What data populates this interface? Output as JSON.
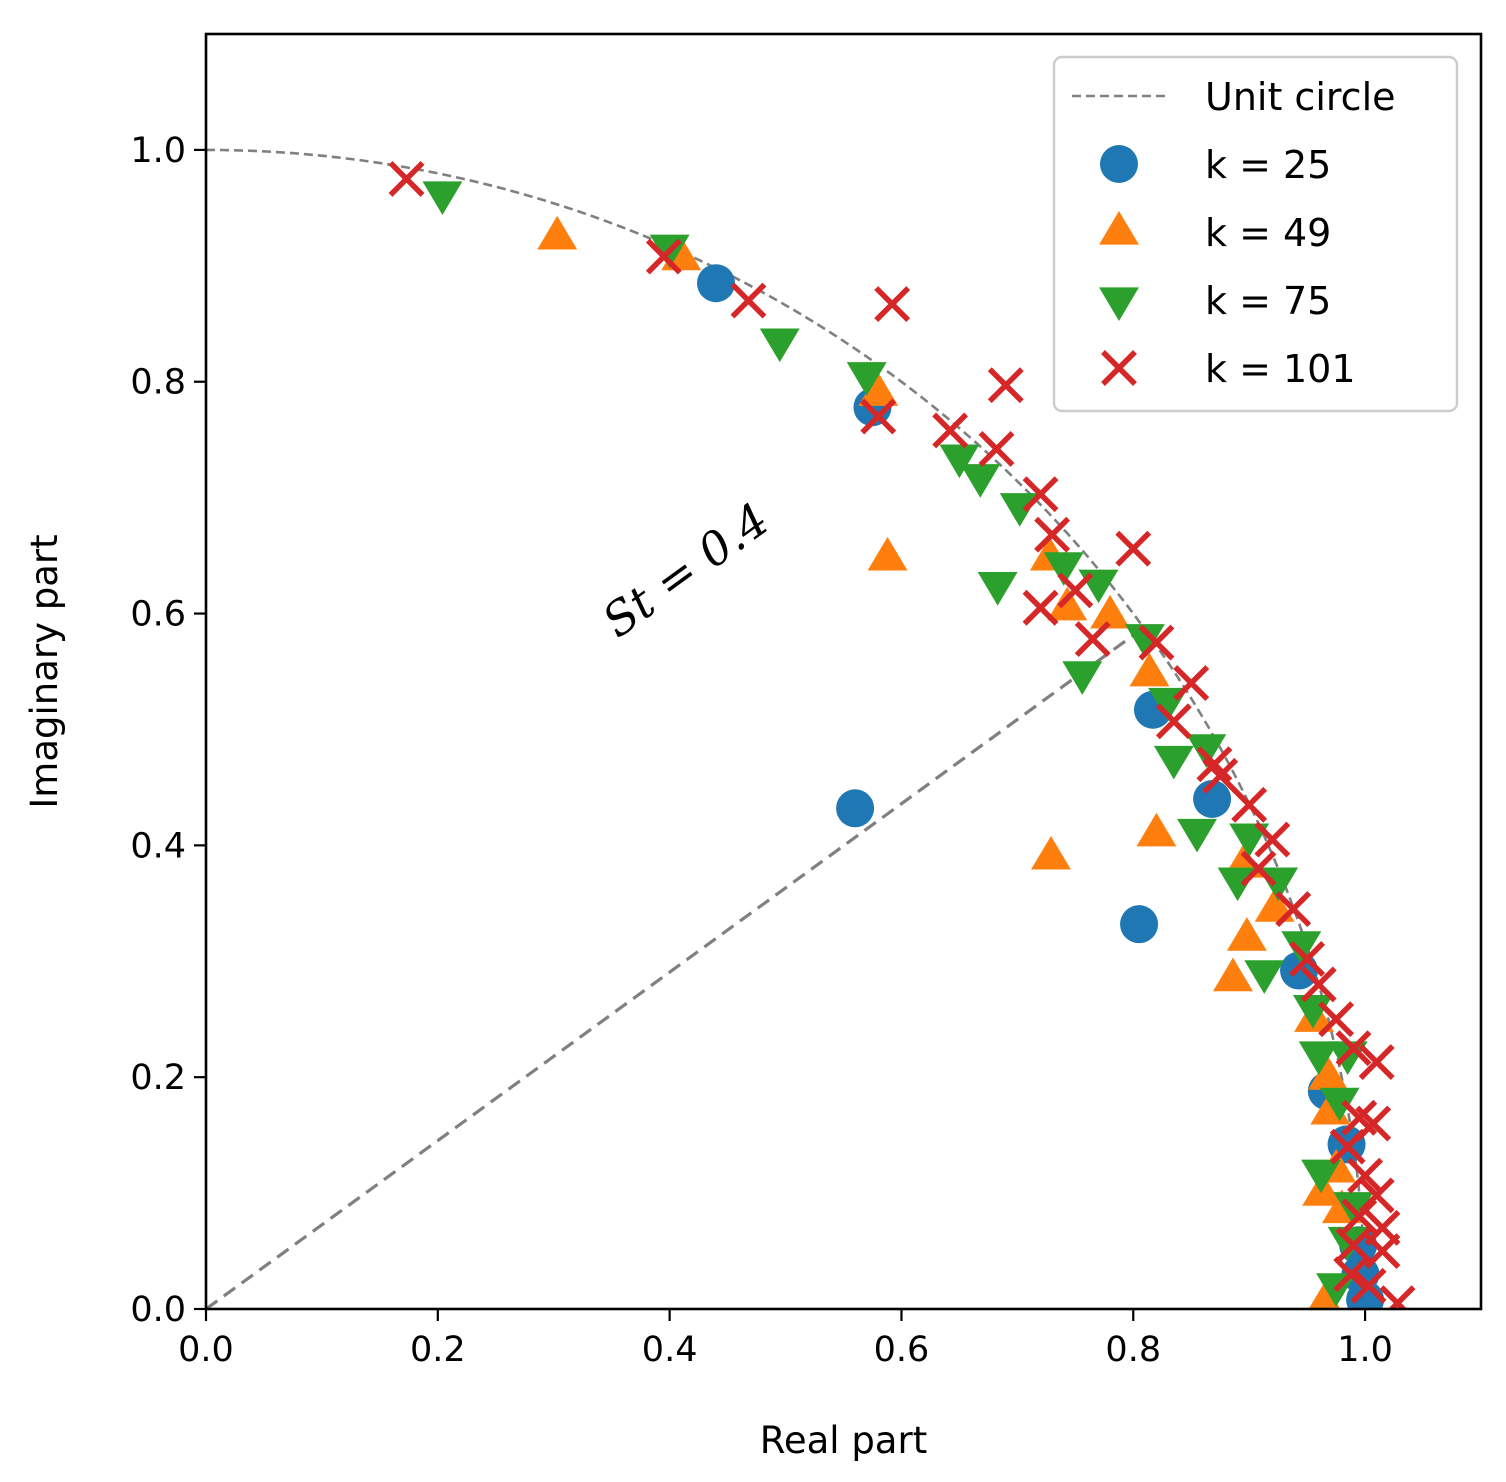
{
  "chart_data": {
    "type": "scatter",
    "title": "",
    "xlabel": "Real part",
    "ylabel": "Imaginary part",
    "xlim": [
      0.0,
      1.1
    ],
    "ylim": [
      0.0,
      1.1
    ],
    "xticks": [
      "0.0",
      "0.2",
      "0.4",
      "0.6",
      "0.8",
      "1.0"
    ],
    "yticks": [
      "0.0",
      "0.2",
      "0.4",
      "0.6",
      "0.8",
      "1.0"
    ],
    "grid": false,
    "legend_position": "top-right",
    "annotation": {
      "text": "St = 0.4",
      "st": 0.4
    },
    "reference": {
      "name": "Unit circle",
      "color": "#808080",
      "style": "dashed"
    },
    "series": [
      {
        "name": "k = 25",
        "marker": "circle",
        "color": "#1f77b4",
        "points": [
          [
            0.44,
            0.885
          ],
          [
            0.575,
            0.778
          ],
          [
            0.56,
            0.432
          ],
          [
            0.817,
            0.517
          ],
          [
            0.868,
            0.44
          ],
          [
            0.805,
            0.332
          ],
          [
            0.943,
            0.292
          ],
          [
            0.967,
            0.188
          ],
          [
            0.984,
            0.142
          ],
          [
            0.994,
            0.055
          ],
          [
            0.996,
            0.03
          ],
          [
            1.0,
            0.008
          ]
        ]
      },
      {
        "name": "k = 49",
        "marker": "triangle-up",
        "color": "#ff7f0e",
        "points": [
          [
            0.303,
            0.925
          ],
          [
            0.41,
            0.907
          ],
          [
            0.58,
            0.79
          ],
          [
            0.588,
            0.648
          ],
          [
            0.728,
            0.648
          ],
          [
            0.743,
            0.605
          ],
          [
            0.78,
            0.598
          ],
          [
            0.814,
            0.548
          ],
          [
            0.82,
            0.41
          ],
          [
            0.729,
            0.39
          ],
          [
            0.895,
            0.383
          ],
          [
            0.898,
            0.32
          ],
          [
            0.922,
            0.345
          ],
          [
            0.886,
            0.285
          ],
          [
            0.956,
            0.25
          ],
          [
            0.968,
            0.2
          ],
          [
            0.97,
            0.17
          ],
          [
            0.963,
            0.1
          ],
          [
            0.975,
            0.12
          ],
          [
            0.98,
            0.085
          ],
          [
            0.965,
            0.005
          ]
        ]
      },
      {
        "name": "k = 75",
        "marker": "triangle-down",
        "color": "#2ca02c",
        "points": [
          [
            0.204,
            0.962
          ],
          [
            0.4,
            0.916
          ],
          [
            0.495,
            0.835
          ],
          [
            0.57,
            0.806
          ],
          [
            0.65,
            0.735
          ],
          [
            0.668,
            0.718
          ],
          [
            0.702,
            0.693
          ],
          [
            0.683,
            0.625
          ],
          [
            0.74,
            0.642
          ],
          [
            0.77,
            0.627
          ],
          [
            0.756,
            0.548
          ],
          [
            0.81,
            0.58
          ],
          [
            0.83,
            0.525
          ],
          [
            0.835,
            0.475
          ],
          [
            0.863,
            0.485
          ],
          [
            0.855,
            0.412
          ],
          [
            0.9,
            0.408
          ],
          [
            0.89,
            0.37
          ],
          [
            0.925,
            0.37
          ],
          [
            0.913,
            0.29
          ],
          [
            0.945,
            0.315
          ],
          [
            0.955,
            0.26
          ],
          [
            0.96,
            0.22
          ],
          [
            0.985,
            0.22
          ],
          [
            0.962,
            0.118
          ],
          [
            0.978,
            0.18
          ],
          [
            0.99,
            0.09
          ],
          [
            0.985,
            0.06
          ],
          [
            0.975,
            0.02
          ]
        ]
      },
      {
        "name": "k = 101",
        "marker": "x",
        "color": "#d62728",
        "points": [
          [
            0.173,
            0.975
          ],
          [
            0.395,
            0.908
          ],
          [
            0.468,
            0.87
          ],
          [
            0.592,
            0.867
          ],
          [
            0.69,
            0.797
          ],
          [
            0.58,
            0.77
          ],
          [
            0.642,
            0.758
          ],
          [
            0.682,
            0.742
          ],
          [
            0.72,
            0.703
          ],
          [
            0.73,
            0.668
          ],
          [
            0.8,
            0.656
          ],
          [
            0.72,
            0.605
          ],
          [
            0.765,
            0.578
          ],
          [
            0.75,
            0.62
          ],
          [
            0.82,
            0.575
          ],
          [
            0.85,
            0.54
          ],
          [
            0.835,
            0.507
          ],
          [
            0.87,
            0.47
          ],
          [
            0.875,
            0.46
          ],
          [
            0.9,
            0.435
          ],
          [
            0.92,
            0.405
          ],
          [
            0.908,
            0.38
          ],
          [
            0.938,
            0.345
          ],
          [
            0.95,
            0.302
          ],
          [
            0.96,
            0.28
          ],
          [
            0.975,
            0.25
          ],
          [
            0.99,
            0.225
          ],
          [
            1.01,
            0.213
          ],
          [
            0.995,
            0.165
          ],
          [
            1.007,
            0.16
          ],
          [
            0.985,
            0.14
          ],
          [
            1.0,
            0.115
          ],
          [
            1.01,
            0.098
          ],
          [
            0.995,
            0.08
          ],
          [
            1.015,
            0.07
          ],
          [
            0.99,
            0.055
          ],
          [
            1.015,
            0.05
          ],
          [
            0.988,
            0.03
          ],
          [
            1.003,
            0.02
          ],
          [
            1.028,
            0.005
          ]
        ]
      }
    ]
  }
}
